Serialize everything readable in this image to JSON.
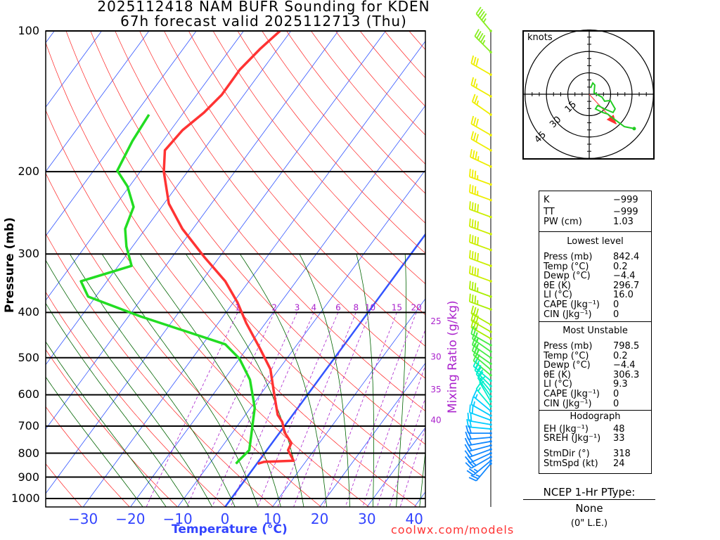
{
  "title": {
    "line1": "2025112418 NAM BUFR Sounding for KDEN",
    "line2": "67h forecast valid 2025112713 (Thu)"
  },
  "footer_credit": "coolwx.com/models",
  "colors": {
    "temperature": "#ff3333",
    "dewpoint": "#22dd22",
    "isotherm": "#3355ff",
    "dry_adiabat": "#ff2222",
    "moist_adiabat": "#006400",
    "mixing_ratio": "#aa22cc",
    "axis_label_blue": "#3344ff"
  },
  "chart_data": {
    "type": "line",
    "title": "2025112418 NAM BUFR Sounding for KDEN",
    "xlabel": "Temperature (°C)",
    "ylabel": "Pressure (mb)",
    "mixing_ratio_label": "Mixing Ratio (g/kg)",
    "pressure_ticks": [
      100,
      200,
      300,
      400,
      500,
      600,
      700,
      800,
      900,
      1000
    ],
    "pressure_tick_labels": [
      "100",
      "200",
      "300",
      "400",
      "500",
      "600",
      "700",
      "800",
      "900",
      "1000"
    ],
    "temperature_ticks": [
      -30,
      -20,
      -10,
      0,
      10,
      20,
      30,
      40
    ],
    "temperature_tick_labels": [
      "−30",
      "−20",
      "−10",
      "0",
      "10",
      "20",
      "30",
      "40"
    ],
    "ylim": [
      1042,
      100
    ],
    "xlim_at_bottom": [
      -38,
      42
    ],
    "mixing_ratios": [
      1,
      2,
      3,
      4,
      6,
      8,
      10,
      15,
      20,
      25,
      30,
      35,
      40
    ],
    "mixing_ratio_labels": [
      "1",
      "2",
      "3",
      "4",
      "6",
      "8",
      "10",
      "15",
      "20",
      "25",
      "30",
      "35",
      "40"
    ],
    "temperature_profile": [
      {
        "p": 100,
        "t": -62.3
      },
      {
        "p": 109,
        "t": -63.7
      },
      {
        "p": 121,
        "t": -64.8
      },
      {
        "p": 137,
        "t": -64.7
      },
      {
        "p": 149.5,
        "t": -65.7
      },
      {
        "p": 163,
        "t": -67.5
      },
      {
        "p": 180,
        "t": -68.1
      },
      {
        "p": 200,
        "t": -65.0
      },
      {
        "p": 234,
        "t": -59.0
      },
      {
        "p": 265,
        "t": -52.2
      },
      {
        "p": 304,
        "t": -43.3
      },
      {
        "p": 343,
        "t": -35.0
      },
      {
        "p": 381,
        "t": -29.1
      },
      {
        "p": 422,
        "t": -24.0
      },
      {
        "p": 477,
        "t": -17.3
      },
      {
        "p": 529,
        "t": -11.8
      },
      {
        "p": 597,
        "t": -7.2
      },
      {
        "p": 662,
        "t": -3.2
      },
      {
        "p": 686,
        "t": -1.1
      },
      {
        "p": 722,
        "t": 1.0
      },
      {
        "p": 761,
        "t": 4.1
      },
      {
        "p": 788,
        "t": 4.5
      },
      {
        "p": 830,
        "t": 7.3
      },
      {
        "p": 835,
        "t": 1.2
      },
      {
        "p": 842.4,
        "t": 0.2
      }
    ],
    "dewpoint_profile": [
      {
        "p": 151,
        "t": -77.0
      },
      {
        "p": 172,
        "t": -76.4
      },
      {
        "p": 199,
        "t": -75.0
      },
      {
        "p": 215,
        "t": -70.4
      },
      {
        "p": 238,
        "t": -65.9
      },
      {
        "p": 265,
        "t": -64.3
      },
      {
        "p": 289,
        "t": -61.3
      },
      {
        "p": 318,
        "t": -57.2
      },
      {
        "p": 343,
        "t": -65.5
      },
      {
        "p": 370,
        "t": -61.6
      },
      {
        "p": 408,
        "t": -47.4
      },
      {
        "p": 437,
        "t": -36.3
      },
      {
        "p": 468,
        "t": -25.2
      },
      {
        "p": 502,
        "t": -20.0
      },
      {
        "p": 557,
        "t": -14.5
      },
      {
        "p": 640,
        "t": -9.1
      },
      {
        "p": 686,
        "t": -7.3
      },
      {
        "p": 735,
        "t": -5.5
      },
      {
        "p": 788,
        "t": -3.7
      },
      {
        "p": 830,
        "t": -4.3
      },
      {
        "p": 842.4,
        "t": -4.4
      }
    ],
    "winds": [
      [
        100,
        320,
        45
      ],
      [
        111,
        315,
        45
      ],
      [
        124,
        300,
        30
      ],
      [
        138,
        300,
        25
      ],
      [
        151,
        305,
        25
      ],
      [
        167,
        300,
        30
      ],
      [
        180,
        300,
        30
      ],
      [
        195,
        295,
        35
      ],
      [
        213,
        290,
        35
      ],
      [
        230,
        290,
        35
      ],
      [
        250,
        290,
        40
      ],
      [
        272,
        290,
        40
      ],
      [
        294,
        290,
        40
      ],
      [
        318,
        290,
        40
      ],
      [
        343,
        290,
        40
      ],
      [
        370,
        290,
        35
      ],
      [
        394,
        290,
        35
      ],
      [
        425,
        300,
        30
      ],
      [
        440,
        300,
        30
      ],
      [
        455,
        300,
        30
      ],
      [
        470,
        300,
        25
      ],
      [
        485,
        305,
        25
      ],
      [
        500,
        305,
        25
      ],
      [
        515,
        305,
        25
      ],
      [
        530,
        310,
        25
      ],
      [
        545,
        310,
        20
      ],
      [
        560,
        310,
        20
      ],
      [
        575,
        315,
        20
      ],
      [
        590,
        320,
        20
      ],
      [
        605,
        325,
        15
      ],
      [
        620,
        330,
        15
      ],
      [
        635,
        320,
        15
      ],
      [
        650,
        310,
        15
      ],
      [
        665,
        300,
        15
      ],
      [
        680,
        290,
        20
      ],
      [
        695,
        280,
        20
      ],
      [
        710,
        275,
        20
      ],
      [
        725,
        270,
        20
      ],
      [
        740,
        265,
        20
      ],
      [
        755,
        260,
        20
      ],
      [
        770,
        255,
        20
      ],
      [
        785,
        250,
        20
      ],
      [
        800,
        245,
        20
      ],
      [
        815,
        240,
        25
      ],
      [
        830,
        230,
        25
      ],
      [
        842,
        220,
        25
      ]
    ]
  },
  "hodograph": {
    "units_label": "knots",
    "ring_labels": [
      "15",
      "30",
      "45"
    ],
    "rings": [
      15,
      30,
      45
    ],
    "trace_uv": [
      [
        1.0,
        4.4
      ],
      [
        2.5,
        7.9
      ],
      [
        3.9,
        6.4
      ],
      [
        3.4,
        1.0
      ],
      [
        8.9,
        -2.0
      ],
      [
        10.8,
        -4.9
      ],
      [
        14.8,
        -4.4
      ],
      [
        18.2,
        -10.3
      ],
      [
        16.7,
        -12.8
      ],
      [
        11.8,
        -10.8
      ],
      [
        5.9,
        -7.9
      ],
      [
        4.4,
        -10.3
      ],
      [
        9.4,
        -12.8
      ],
      [
        12.8,
        -13.8
      ],
      [
        17.2,
        -17.2
      ],
      [
        24.6,
        -22.7
      ],
      [
        31.5,
        -24.1
      ]
    ],
    "storm_motion_uv": [
      16.1,
      -17.8
    ]
  },
  "stats": {
    "indices": [
      {
        "label": "K",
        "value": "−999"
      },
      {
        "label": "TT",
        "value": "−999"
      },
      {
        "label": "PW (cm)",
        "value": "1.03"
      }
    ],
    "lowest": {
      "header": "Lowest level",
      "rows": [
        {
          "label": "Press (mb)",
          "value": "842.4"
        },
        {
          "label": "Temp (°C)",
          "value": "0.2"
        },
        {
          "label": "Dewp (°C)",
          "value": "−4.4"
        },
        {
          "label": "θE (K)",
          "value": "296.7"
        },
        {
          "label": "LI (°C)",
          "value": "16.0"
        },
        {
          "label": "CAPE (Jkg⁻¹)",
          "value": "0"
        },
        {
          "label": "CIN (Jkg⁻¹)",
          "value": "0"
        }
      ]
    },
    "unstable": {
      "header": "Most Unstable",
      "rows": [
        {
          "label": "Press (mb)",
          "value": "798.5"
        },
        {
          "label": "Temp (°C)",
          "value": "0.2"
        },
        {
          "label": "Dewp (°C)",
          "value": "−4.4"
        },
        {
          "label": "θE (K)",
          "value": "306.3"
        },
        {
          "label": "LI (°C)",
          "value": "9.3"
        },
        {
          "label": "CAPE (Jkg⁻¹)",
          "value": "0"
        },
        {
          "label": "CIN (Jkg⁻¹)",
          "value": "0"
        }
      ]
    },
    "hodo": {
      "header": "Hodograph",
      "rows": [
        {
          "label": "EH (Jkg⁻¹)",
          "value": "48"
        },
        {
          "label": "SREH (Jkg⁻¹)",
          "value": "33"
        },
        {
          "label": "StmDir (°)",
          "value": "318"
        },
        {
          "label": "StmSpd (kt)",
          "value": "24"
        }
      ]
    }
  },
  "ptype": {
    "title": "NCEP 1-Hr PType:",
    "value": "None",
    "amount": "(0\" L.E.)"
  }
}
